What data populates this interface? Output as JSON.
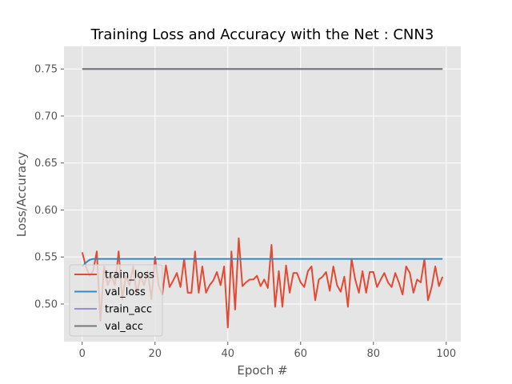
{
  "chart_data": {
    "type": "line",
    "title": "Training Loss and Accuracy with the Net : CNN3",
    "xlabel": "Epoch #",
    "ylabel": "Loss/Accuracy",
    "xlim": [
      -5,
      104
    ],
    "ylim": [
      0.46,
      0.774
    ],
    "x_ticks": [
      0,
      20,
      40,
      60,
      80,
      100
    ],
    "y_ticks": [
      0.5,
      0.55,
      0.6,
      0.65,
      0.7,
      0.75
    ],
    "y_tick_labels": [
      "0.50",
      "0.55",
      "0.60",
      "0.65",
      "0.70",
      "0.75"
    ],
    "grid": true,
    "legend_position": "lower-left",
    "x": [
      0,
      1,
      2,
      3,
      4,
      5,
      6,
      7,
      8,
      9,
      10,
      11,
      12,
      13,
      14,
      15,
      16,
      17,
      18,
      19,
      20,
      21,
      22,
      23,
      24,
      25,
      26,
      27,
      28,
      29,
      30,
      31,
      32,
      33,
      34,
      35,
      36,
      37,
      38,
      39,
      40,
      41,
      42,
      43,
      44,
      45,
      46,
      47,
      48,
      49,
      50,
      51,
      52,
      53,
      54,
      55,
      56,
      57,
      58,
      59,
      60,
      61,
      62,
      63,
      64,
      65,
      66,
      67,
      68,
      69,
      70,
      71,
      72,
      73,
      74,
      75,
      76,
      77,
      78,
      79,
      80,
      81,
      82,
      83,
      84,
      85,
      86,
      87,
      88,
      89,
      90,
      91,
      92,
      93,
      94,
      95,
      96,
      97,
      98,
      99
    ],
    "series": [
      {
        "name": "train_loss",
        "color": "#e24a33",
        "values": [
          0.555,
          0.54,
          0.53,
          0.535,
          0.556,
          0.482,
          0.54,
          0.52,
          0.53,
          0.52,
          0.556,
          0.505,
          0.53,
          0.52,
          0.54,
          0.51,
          0.53,
          0.52,
          0.535,
          0.505,
          0.55,
          0.52,
          0.51,
          0.541,
          0.518,
          0.525,
          0.533,
          0.518,
          0.548,
          0.512,
          0.512,
          0.556,
          0.512,
          0.54,
          0.512,
          0.52,
          0.525,
          0.534,
          0.52,
          0.54,
          0.475,
          0.556,
          0.494,
          0.57,
          0.519,
          0.523,
          0.526,
          0.526,
          0.53,
          0.519,
          0.526,
          0.517,
          0.563,
          0.497,
          0.535,
          0.497,
          0.541,
          0.512,
          0.533,
          0.533,
          0.523,
          0.518,
          0.535,
          0.54,
          0.504,
          0.526,
          0.529,
          0.534,
          0.514,
          0.54,
          0.52,
          0.513,
          0.529,
          0.497,
          0.548,
          0.526,
          0.512,
          0.535,
          0.512,
          0.534,
          0.534,
          0.518,
          0.526,
          0.533,
          0.523,
          0.518,
          0.533,
          0.523,
          0.51,
          0.54,
          0.533,
          0.512,
          0.526,
          0.523,
          0.548,
          0.504,
          0.518,
          0.54,
          0.519,
          0.529
        ]
      },
      {
        "name": "val_loss",
        "color": "#348abd",
        "values": [
          0.54,
          0.544,
          0.547,
          0.548,
          0.548,
          0.548,
          0.548,
          0.548,
          0.548,
          0.548,
          0.548,
          0.548,
          0.548,
          0.548,
          0.548,
          0.548,
          0.548,
          0.548,
          0.548,
          0.548,
          0.548,
          0.548,
          0.548,
          0.548,
          0.548,
          0.548,
          0.548,
          0.548,
          0.548,
          0.548,
          0.548,
          0.548,
          0.548,
          0.548,
          0.548,
          0.548,
          0.548,
          0.548,
          0.548,
          0.548,
          0.548,
          0.548,
          0.548,
          0.548,
          0.548,
          0.548,
          0.548,
          0.548,
          0.548,
          0.548,
          0.548,
          0.548,
          0.548,
          0.548,
          0.548,
          0.548,
          0.548,
          0.548,
          0.548,
          0.548,
          0.548,
          0.548,
          0.548,
          0.548,
          0.548,
          0.548,
          0.548,
          0.548,
          0.548,
          0.548,
          0.548,
          0.548,
          0.548,
          0.548,
          0.548,
          0.548,
          0.548,
          0.548,
          0.548,
          0.548,
          0.548,
          0.548,
          0.548,
          0.548,
          0.548,
          0.548,
          0.548,
          0.548,
          0.548,
          0.548,
          0.548,
          0.548,
          0.548,
          0.548,
          0.548,
          0.548,
          0.548,
          0.548,
          0.548,
          0.548
        ]
      },
      {
        "name": "train_acc",
        "color": "#988ed5",
        "values": [
          0.75,
          0.75,
          0.75,
          0.75,
          0.75,
          0.75,
          0.75,
          0.75,
          0.75,
          0.75,
          0.75,
          0.75,
          0.75,
          0.75,
          0.75,
          0.75,
          0.75,
          0.75,
          0.75,
          0.75,
          0.75,
          0.75,
          0.75,
          0.75,
          0.75,
          0.75,
          0.75,
          0.75,
          0.75,
          0.75,
          0.75,
          0.75,
          0.75,
          0.75,
          0.75,
          0.75,
          0.75,
          0.75,
          0.75,
          0.75,
          0.75,
          0.75,
          0.75,
          0.75,
          0.75,
          0.75,
          0.75,
          0.75,
          0.75,
          0.75,
          0.75,
          0.75,
          0.75,
          0.75,
          0.75,
          0.75,
          0.75,
          0.75,
          0.75,
          0.75,
          0.75,
          0.75,
          0.75,
          0.75,
          0.75,
          0.75,
          0.75,
          0.75,
          0.75,
          0.75,
          0.75,
          0.75,
          0.75,
          0.75,
          0.75,
          0.75,
          0.75,
          0.75,
          0.75,
          0.75,
          0.75,
          0.75,
          0.75,
          0.75,
          0.75,
          0.75,
          0.75,
          0.75,
          0.75,
          0.75,
          0.75,
          0.75,
          0.75,
          0.75,
          0.75,
          0.75,
          0.75,
          0.75,
          0.75,
          0.75
        ]
      },
      {
        "name": "val_acc",
        "color": "#777777",
        "values": [
          0.75,
          0.75,
          0.75,
          0.75,
          0.75,
          0.75,
          0.75,
          0.75,
          0.75,
          0.75,
          0.75,
          0.75,
          0.75,
          0.75,
          0.75,
          0.75,
          0.75,
          0.75,
          0.75,
          0.75,
          0.75,
          0.75,
          0.75,
          0.75,
          0.75,
          0.75,
          0.75,
          0.75,
          0.75,
          0.75,
          0.75,
          0.75,
          0.75,
          0.75,
          0.75,
          0.75,
          0.75,
          0.75,
          0.75,
          0.75,
          0.75,
          0.75,
          0.75,
          0.75,
          0.75,
          0.75,
          0.75,
          0.75,
          0.75,
          0.75,
          0.75,
          0.75,
          0.75,
          0.75,
          0.75,
          0.75,
          0.75,
          0.75,
          0.75,
          0.75,
          0.75,
          0.75,
          0.75,
          0.75,
          0.75,
          0.75,
          0.75,
          0.75,
          0.75,
          0.75,
          0.75,
          0.75,
          0.75,
          0.75,
          0.75,
          0.75,
          0.75,
          0.75,
          0.75,
          0.75,
          0.75,
          0.75,
          0.75,
          0.75,
          0.75,
          0.75,
          0.75,
          0.75,
          0.75,
          0.75,
          0.75,
          0.75,
          0.75,
          0.75,
          0.75,
          0.75,
          0.75,
          0.75,
          0.75,
          0.75
        ]
      }
    ]
  },
  "style": {
    "plot_background": "#e5e5e5",
    "grid_color": "#ffffff"
  }
}
